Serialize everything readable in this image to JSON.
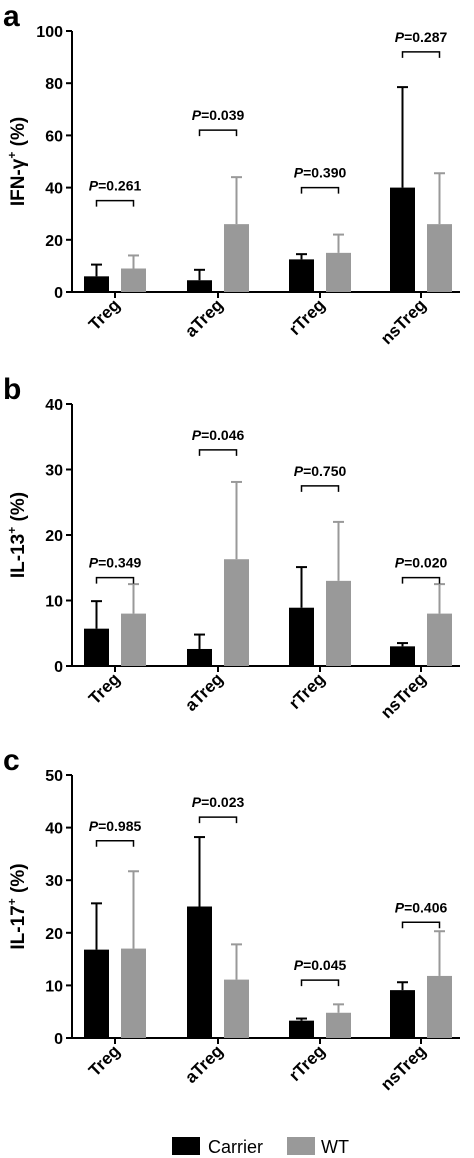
{
  "legend": {
    "items": [
      {
        "label": "Carrier",
        "color": "#000000"
      },
      {
        "label": "WT",
        "color": "#999999"
      }
    ]
  },
  "chart_data": [
    {
      "type": "bar",
      "panel": "a",
      "ylabel": "IFN-γ",
      "ylabel_sup": "+",
      "ylabel_suffix": " (%)",
      "ylim": [
        0,
        100
      ],
      "yticks": [
        "0",
        "20",
        "40",
        "60",
        "80",
        "100"
      ],
      "categories": [
        "Treg",
        "aTreg",
        "rTreg",
        "nsTreg"
      ],
      "series": [
        {
          "name": "Carrier",
          "color": "#000000",
          "values": [
            6,
            4.5,
            12.5,
            40
          ],
          "errors": [
            4.5,
            4,
            2,
            38.5
          ]
        },
        {
          "name": "WT",
          "color": "#999999",
          "values": [
            9,
            26,
            15,
            26
          ],
          "errors": [
            5,
            18,
            7,
            19.5
          ]
        }
      ],
      "pvalues": [
        {
          "prefix": "P",
          "text": "=0.261",
          "bracket_y": 35
        },
        {
          "prefix": "P",
          "text": "=0.039",
          "bracket_y": 62
        },
        {
          "prefix": "P",
          "text": "=0.390",
          "bracket_y": 40
        },
        {
          "prefix": "P",
          "text": "=0.287",
          "bracket_y": 92
        }
      ]
    },
    {
      "type": "bar",
      "panel": "b",
      "ylabel": "IL-13",
      "ylabel_sup": "+",
      "ylabel_suffix": " (%)",
      "ylim": [
        0,
        40
      ],
      "yticks": [
        "0",
        "10",
        "20",
        "30",
        "40"
      ],
      "categories": [
        "Treg",
        "aTreg",
        "rTreg",
        "nsTreg"
      ],
      "series": [
        {
          "name": "Carrier",
          "color": "#000000",
          "values": [
            5.7,
            2.6,
            8.9,
            3
          ],
          "errors": [
            4.2,
            2.2,
            6.2,
            0.5
          ]
        },
        {
          "name": "WT",
          "color": "#999999",
          "values": [
            8,
            16.3,
            13,
            8
          ],
          "errors": [
            4.5,
            11.8,
            9,
            4.5
          ]
        }
      ],
      "pvalues": [
        {
          "prefix": "P",
          "text": "=0.349",
          "bracket_y": 13.5
        },
        {
          "prefix": "P",
          "text": "=0.046",
          "bracket_y": 33
        },
        {
          "prefix": "P",
          "text": "=0.750",
          "bracket_y": 27.5
        },
        {
          "prefix": "P",
          "text": "=0.020",
          "bracket_y": 13.5
        }
      ]
    },
    {
      "type": "bar",
      "panel": "c",
      "ylabel": "IL-17",
      "ylabel_sup": "+",
      "ylabel_suffix": " (%)",
      "ylim": [
        0,
        50
      ],
      "yticks": [
        "0",
        "10",
        "20",
        "30",
        "40",
        "50"
      ],
      "categories": [
        "Treg",
        "aTreg",
        "rTreg",
        "nsTreg"
      ],
      "series": [
        {
          "name": "Carrier",
          "color": "#000000",
          "values": [
            16.8,
            25,
            3.3,
            9.1
          ],
          "errors": [
            8.8,
            13.2,
            0.4,
            1.5
          ]
        },
        {
          "name": "WT",
          "color": "#999999",
          "values": [
            17,
            11.1,
            4.8,
            11.8
          ],
          "errors": [
            14.7,
            6.7,
            1.6,
            8.5
          ]
        }
      ],
      "pvalues": [
        {
          "prefix": "P",
          "text": "=0.985",
          "bracket_y": 37.5
        },
        {
          "prefix": "P",
          "text": "=0.023",
          "bracket_y": 42
        },
        {
          "prefix": "P",
          "text": "=0.045",
          "bracket_y": 11
        },
        {
          "prefix": "P",
          "text": "=0.406",
          "bracket_y": 22
        }
      ]
    }
  ]
}
